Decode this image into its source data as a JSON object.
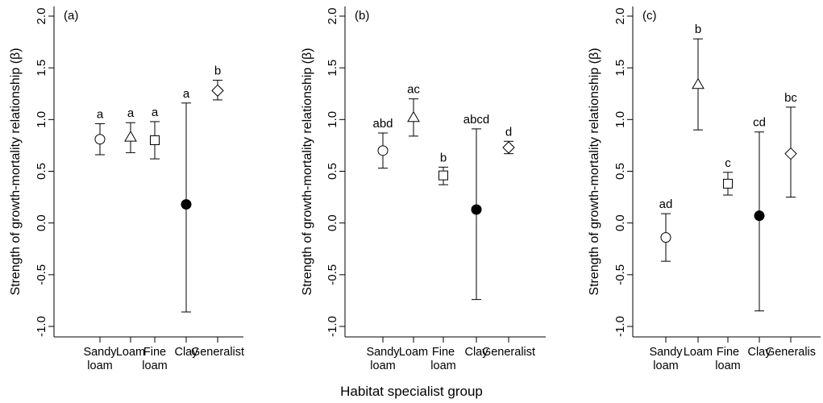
{
  "xlabel": "Habitat specialist group",
  "chart_data": [
    {
      "type": "scatter",
      "panel_label": "(a)",
      "ylabel": "Strength of growth-mortality relationship (β)",
      "ylim": [
        -1.0,
        2.0
      ],
      "yticks": [
        -1.0,
        -0.5,
        0.0,
        0.5,
        1.0,
        1.5,
        2.0
      ],
      "ytick_labels": [
        "-1.0",
        "-0.5",
        "0.0",
        "0.5",
        "1.0",
        "1.5",
        "2.0"
      ],
      "categories": [
        [
          "Sandy",
          "loam"
        ],
        [
          "Loam"
        ],
        [
          "Fine",
          "loam"
        ],
        [
          "Clay"
        ],
        [
          "Generalist"
        ]
      ],
      "values": [
        0.81,
        0.83,
        0.8,
        0.18,
        1.28
      ],
      "lower": [
        0.66,
        0.68,
        0.62,
        -0.86,
        1.19
      ],
      "upper": [
        0.96,
        0.97,
        0.98,
        1.16,
        1.38
      ],
      "markers": [
        "circle",
        "triangle",
        "square",
        "filled-circle",
        "diamond"
      ],
      "letters": [
        "a",
        "a",
        "a",
        "a",
        "b"
      ],
      "grid": false
    },
    {
      "type": "scatter",
      "panel_label": "(b)",
      "ylabel": "Strength of growth-mortality relationship (β)",
      "ylim": [
        -1.0,
        2.0
      ],
      "yticks": [
        -1.0,
        -0.5,
        0.0,
        0.5,
        1.0,
        1.5,
        2.0
      ],
      "ytick_labels": [
        "-1.0",
        "-0.5",
        "0.0",
        "0.5",
        "1.0",
        "1.5",
        "2.0"
      ],
      "categories": [
        [
          "Sandy",
          "loam"
        ],
        [
          "Loam"
        ],
        [
          "Fine",
          "loam"
        ],
        [
          "Clay"
        ],
        [
          "Generalist"
        ]
      ],
      "values": [
        0.7,
        1.02,
        0.46,
        0.13,
        0.73
      ],
      "lower": [
        0.53,
        0.84,
        0.37,
        -0.74,
        0.67
      ],
      "upper": [
        0.87,
        1.2,
        0.54,
        0.91,
        0.79
      ],
      "markers": [
        "circle",
        "triangle",
        "square",
        "filled-circle",
        "diamond"
      ],
      "letters": [
        "abd",
        "ac",
        "b",
        "abcd",
        "d"
      ],
      "grid": false
    },
    {
      "type": "scatter",
      "panel_label": "(c)",
      "ylabel": "Strength of growth-mortality relationship (β)",
      "ylim": [
        -1.0,
        2.0
      ],
      "yticks": [
        -1.0,
        -0.5,
        0.0,
        0.5,
        1.0,
        1.5,
        2.0
      ],
      "ytick_labels": [
        "-1.0",
        "-0.5",
        "0.0",
        "0.5",
        "1.0",
        "1.5",
        "2.0"
      ],
      "categories": [
        [
          "Sandy",
          "loam"
        ],
        [
          "Loam"
        ],
        [
          "Fine",
          "loam"
        ],
        [
          "Clay"
        ],
        [
          "Generalis"
        ]
      ],
      "values": [
        -0.14,
        1.34,
        0.38,
        0.07,
        0.67
      ],
      "lower": [
        -0.37,
        0.9,
        0.27,
        -0.85,
        0.25
      ],
      "upper": [
        0.09,
        1.78,
        0.49,
        0.88,
        1.12
      ],
      "markers": [
        "circle",
        "triangle",
        "square",
        "filled-circle",
        "diamond"
      ],
      "letters": [
        "ad",
        "b",
        "c",
        "cd",
        "bc"
      ],
      "grid": false
    }
  ]
}
